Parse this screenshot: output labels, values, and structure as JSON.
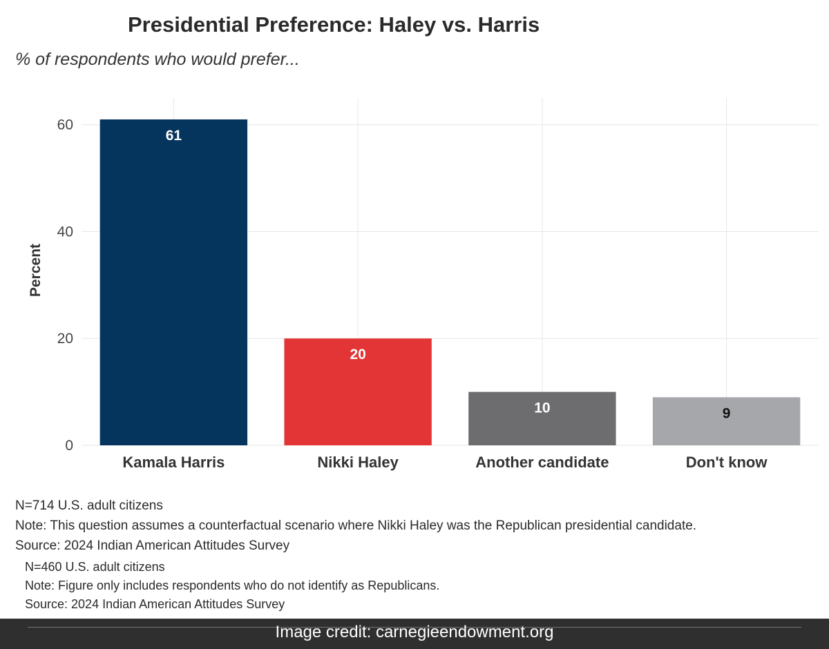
{
  "chart_data": {
    "type": "bar",
    "title": "Presidential Preference: Haley vs. Harris",
    "subtitle": "% of respondents who would prefer...",
    "ylabel": "Percent",
    "xlabel": "",
    "ylim": [
      0,
      65
    ],
    "yticks": [
      0,
      20,
      40,
      60
    ],
    "grid": true,
    "categories": [
      "Kamala Harris",
      "Nikki Haley",
      "Another candidate",
      "Don't know"
    ],
    "values": [
      61,
      20,
      10,
      9
    ],
    "colors": [
      "#05345d",
      "#e33535",
      "#6d6d70",
      "#a6a7aa"
    ],
    "label_colors": [
      "#ffffff",
      "#ffffff",
      "#ffffff",
      "#111111"
    ]
  },
  "notes": [
    "N=714 U.S. adult citizens",
    "Note: This question assumes a counterfactual scenario where Nikki Haley was the Republican presidential candidate.",
    "Source: 2024 Indian American Attitudes Survey"
  ],
  "notes_secondary": [
    "N=460 U.S. adult citizens",
    "Note: Figure only includes respondents who do not identify as Republicans.",
    "Source: 2024 Indian American Attitudes Survey"
  ],
  "footer": {
    "credit": "Image credit: carnegieendowment.org"
  }
}
